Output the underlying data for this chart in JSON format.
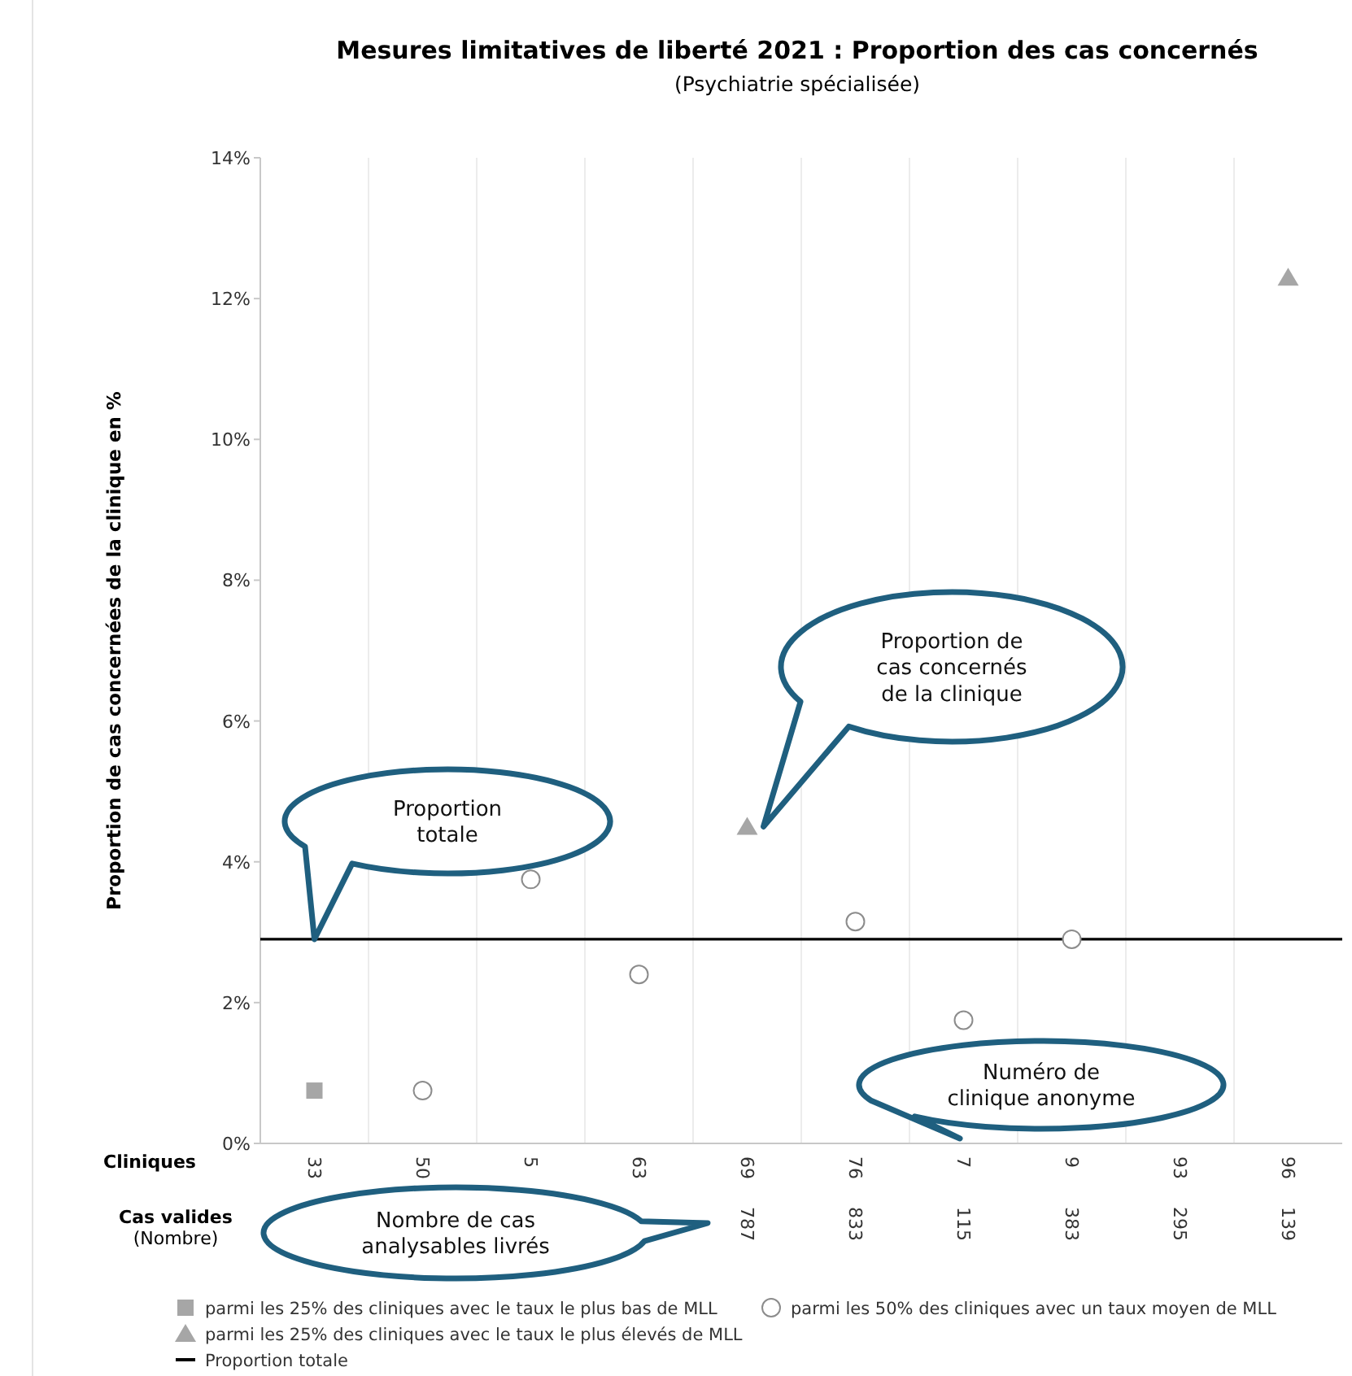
{
  "chart_data": {
    "type": "scatter",
    "title": "Mesures limitatives de liberté 2021 : Proportion des cas concernés",
    "subtitle": "(Psychiatrie spécialisée)",
    "ylabel": "Proportion de cas concernées de la clinique en %",
    "categories": [
      "33",
      "50",
      "5",
      "63",
      "69",
      "76",
      "7",
      "9",
      "93",
      "96"
    ],
    "ylim": [
      0,
      14
    ],
    "yticks": [
      {
        "value": 0,
        "label": "0%"
      },
      {
        "value": 2,
        "label": "2%"
      },
      {
        "value": 4,
        "label": "4%"
      },
      {
        "value": 6,
        "label": "6%"
      },
      {
        "value": 8,
        "label": "8%"
      },
      {
        "value": 10,
        "label": "10%"
      },
      {
        "value": 12,
        "label": "12%"
      },
      {
        "value": 14,
        "label": "14%"
      }
    ],
    "grid": "x",
    "legend": "bottom",
    "series": [
      {
        "name": "parmi les 25% des cliniques avec le taux le plus bas de MLL",
        "color": "#a6a6a6",
        "marker": "square",
        "x": [
          "33"
        ],
        "values": [
          0.75
        ]
      },
      {
        "name": "parmi les 50% des cliniques avec un taux moyen de MLL",
        "color": "#ffffff",
        "marker": "circle",
        "x": [
          "50",
          "5",
          "63",
          "76",
          "7",
          "9"
        ],
        "values": [
          0.75,
          3.75,
          2.4,
          3.15,
          1.75,
          2.9
        ]
      },
      {
        "name": "parmi les 25% des cliniques avec le taux le plus élevés de MLL",
        "color": "#a6a6a6",
        "marker": "triangle",
        "x": [
          "69",
          "96"
        ],
        "values": [
          4.5,
          12.3
        ]
      }
    ],
    "ref_lines": [
      {
        "axis": "y",
        "value": 2.9,
        "label": "Proportion totale",
        "color": "#000000"
      }
    ],
    "annotations": [
      "Proportion totale",
      "Proportion de cas concernés de la clinique",
      "Numéro de clinique anonyme",
      "Nombre de cas analysables livrés",
      "Cliniques",
      "Cas valides (Nombre)",
      "787",
      "833",
      "115",
      "383",
      "295",
      "139"
    ]
  }
}
